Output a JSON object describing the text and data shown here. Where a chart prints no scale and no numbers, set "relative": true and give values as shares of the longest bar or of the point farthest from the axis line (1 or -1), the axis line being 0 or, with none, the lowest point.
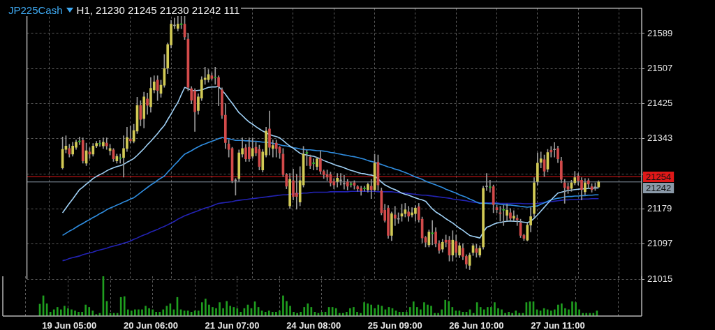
{
  "chart_data": [
    {
      "type": "candlestick",
      "title": "JP225Cash",
      "subtitle": "H1, 21230 21245 21230 21242 111",
      "categories": [
        null,
        null,
        "19 Jun 05:00",
        null,
        null,
        null,
        null,
        null,
        null,
        null,
        null,
        null,
        null,
        null,
        null,
        null,
        null,
        null,
        null,
        null,
        null,
        null,
        null,
        null,
        null,
        null,
        "20 Jun 06:00",
        null,
        null,
        null,
        null,
        null,
        null,
        null,
        null,
        null,
        null,
        null,
        null,
        null,
        null,
        null,
        null,
        null,
        null,
        null,
        null,
        null,
        null,
        null,
        "21 Jun 07:00",
        null,
        null,
        null,
        null,
        null,
        null,
        null,
        null,
        null,
        null,
        null,
        null,
        null,
        null,
        null,
        null,
        null,
        null,
        null,
        null,
        null,
        null,
        null,
        "24 Jun 08:00",
        null,
        null,
        null,
        null,
        null,
        null,
        null,
        null,
        null,
        null,
        null,
        null,
        null,
        null,
        null,
        null,
        null,
        null,
        null,
        null,
        null,
        null,
        null,
        "25 Jun 09:00",
        null,
        null,
        null,
        null,
        null,
        null,
        null,
        null,
        null,
        null,
        null,
        null,
        null,
        null,
        null,
        null,
        null,
        null,
        null,
        null,
        null,
        null,
        null,
        "26 Jun 10:00",
        null,
        null,
        null,
        null,
        null,
        null,
        null,
        null,
        null,
        null,
        null,
        null,
        null,
        null,
        null,
        null,
        null,
        null,
        null,
        null,
        null,
        null,
        null,
        "27 Jun 11:00",
        null,
        null,
        null,
        null,
        null,
        null,
        null,
        null,
        null,
        null,
        null,
        null
      ],
      "ohlc": [
        [
          21275,
          21347,
          21272,
          21318
        ],
        [
          21318,
          21350,
          21310,
          21326
        ],
        [
          21320,
          21330,
          21300,
          21307
        ],
        [
          21307,
          21335,
          21302,
          21326
        ],
        [
          21323,
          21340,
          21318,
          21335
        ],
        [
          21336,
          21347,
          21329,
          21336
        ],
        [
          21339,
          21345,
          21286,
          21291
        ],
        [
          21286,
          21333,
          21280,
          21315
        ],
        [
          21312,
          21322,
          21297,
          21307
        ],
        [
          21307,
          21332,
          21302,
          21326
        ],
        [
          21326,
          21337,
          21322,
          21332
        ],
        [
          21331,
          21339,
          21325,
          21331
        ],
        [
          21326,
          21345,
          21320,
          21335
        ],
        [
          21333,
          21345,
          21318,
          21326
        ],
        [
          21315,
          21330,
          21305,
          21320
        ],
        [
          21317,
          21320,
          21290,
          21296
        ],
        [
          21291,
          21307,
          21286,
          21302
        ],
        [
          21297,
          21307,
          21286,
          21297
        ],
        [
          21299,
          21350,
          21253,
          21320
        ],
        [
          21320,
          21370,
          21313,
          21346
        ],
        [
          21342,
          21373,
          21333,
          21338
        ],
        [
          21337,
          21377,
          21333,
          21362
        ],
        [
          21361,
          21440,
          21355,
          21421
        ],
        [
          21421,
          21432,
          21373,
          21388
        ],
        [
          21390,
          21452,
          21368,
          21441
        ],
        [
          21436,
          21450,
          21400,
          21421
        ],
        [
          21418,
          21486,
          21405,
          21461
        ],
        [
          21457,
          21490,
          21450,
          21476
        ],
        [
          21480,
          21490,
          21432,
          21456
        ],
        [
          21449,
          21480,
          21440,
          21468
        ],
        [
          21468,
          21540,
          21463,
          21507
        ],
        [
          21508,
          21567,
          21495,
          21563
        ],
        [
          21562,
          21620,
          21555,
          21611
        ],
        [
          21607,
          21625,
          21600,
          21607
        ],
        [
          21601,
          21630,
          21595,
          21611
        ],
        [
          21610,
          21630,
          21600,
          21610
        ],
        [
          21611,
          21630,
          21575,
          21581
        ],
        [
          21576,
          21590,
          21455,
          21463
        ],
        [
          21460,
          21465,
          21425,
          21433
        ],
        [
          21455,
          21460,
          21360,
          21406
        ],
        [
          21409,
          21448,
          21400,
          21441
        ],
        [
          21438,
          21488,
          21432,
          21481
        ],
        [
          21481,
          21510,
          21470,
          21485
        ],
        [
          21481,
          21505,
          21475,
          21493
        ],
        [
          21490,
          21497,
          21480,
          21484
        ],
        [
          21485,
          21510,
          21470,
          21485
        ],
        [
          21486,
          21490,
          21420,
          21465
        ],
        [
          21457,
          21462,
          21390,
          21398
        ],
        [
          21398,
          21425,
          21320,
          21334
        ],
        [
          21331,
          21340,
          21300,
          21318
        ],
        [
          21320,
          21323,
          21240,
          21245
        ],
        [
          21245,
          21250,
          21211,
          21245
        ],
        [
          21250,
          21317,
          21243,
          21310
        ],
        [
          21307,
          21345,
          21300,
          21320
        ],
        [
          21322,
          21330,
          21290,
          21296
        ],
        [
          21323,
          21345,
          21290,
          21296
        ],
        [
          21302,
          21345,
          21297,
          21320
        ],
        [
          21323,
          21335,
          21303,
          21310
        ],
        [
          21318,
          21328,
          21270,
          21278
        ],
        [
          21270,
          21318,
          21265,
          21312
        ],
        [
          21305,
          21370,
          21300,
          21361
        ],
        [
          21366,
          21408,
          21305,
          21323
        ],
        [
          21320,
          21340,
          21300,
          21327
        ],
        [
          21333,
          21340,
          21300,
          21320
        ],
        [
          21323,
          21325,
          21297,
          21310
        ],
        [
          21307,
          21320,
          21255,
          21259
        ],
        [
          21259,
          21262,
          21226,
          21232
        ],
        [
          21186,
          21262,
          21180,
          21248
        ],
        [
          21245,
          21272,
          21200,
          21208
        ],
        [
          21216,
          21260,
          21178,
          21208
        ],
        [
          21195,
          21278,
          21186,
          21245
        ],
        [
          21235,
          21325,
          21230,
          21307
        ],
        [
          21309,
          21316,
          21280,
          21309
        ],
        [
          21300,
          21305,
          21273,
          21280
        ],
        [
          21285,
          21296,
          21270,
          21285
        ],
        [
          21278,
          21300,
          21270,
          21296
        ],
        [
          21296,
          21315,
          21260,
          21267
        ],
        [
          21267,
          21270,
          21250,
          21259
        ],
        [
          21259,
          21270,
          21245,
          21253
        ],
        [
          21259,
          21265,
          21232,
          21240
        ],
        [
          21243,
          21250,
          21226,
          21235
        ],
        [
          21243,
          21262,
          21230,
          21251
        ],
        [
          21245,
          21262,
          21235,
          21245
        ],
        [
          21237,
          21258,
          21225,
          21237
        ],
        [
          21242,
          21248,
          21223,
          21232
        ],
        [
          21236,
          21242,
          21230,
          21236
        ],
        [
          21240,
          21245,
          21225,
          21234
        ],
        [
          21231,
          21234,
          21220,
          21226
        ],
        [
          21227,
          21232,
          21211,
          21221
        ],
        [
          21226,
          21232,
          21220,
          21226
        ],
        [
          21224,
          21240,
          21218,
          21236
        ],
        [
          21232,
          21248,
          21203,
          21224
        ],
        [
          21224,
          21307,
          21220,
          21286
        ],
        [
          21288,
          21305,
          21222,
          21235
        ],
        [
          21221,
          21228,
          21165,
          21170
        ],
        [
          21176,
          21190,
          21148,
          21152
        ],
        [
          21181,
          21187,
          21110,
          21117
        ],
        [
          21117,
          21172,
          21105,
          21168
        ],
        [
          21165,
          21185,
          21140,
          21157
        ],
        [
          21155,
          21170,
          21145,
          21155
        ],
        [
          21162,
          21190,
          21150,
          21168
        ],
        [
          21168,
          21192,
          21160,
          21177
        ],
        [
          21172,
          21185,
          21150,
          21162
        ],
        [
          21165,
          21182,
          21160,
          21170
        ],
        [
          21168,
          21187,
          21150,
          21181
        ],
        [
          21184,
          21192,
          21148,
          21154
        ],
        [
          21155,
          21160,
          21100,
          21111
        ],
        [
          21112,
          21115,
          21090,
          21101
        ],
        [
          21095,
          21130,
          21090,
          21125
        ],
        [
          21121,
          21152,
          21095,
          21123
        ],
        [
          21125,
          21135,
          21090,
          21098
        ],
        [
          21098,
          21105,
          21075,
          21082
        ],
        [
          21085,
          21108,
          21078,
          21101
        ],
        [
          21106,
          21118,
          21090,
          21101
        ],
        [
          21106,
          21115,
          21057,
          21071
        ],
        [
          21071,
          21128,
          21057,
          21106
        ],
        [
          21103,
          21118,
          21066,
          21077
        ],
        [
          21071,
          21100,
          21065,
          21093
        ],
        [
          21087,
          21098,
          21060,
          21068
        ],
        [
          21068,
          21072,
          21040,
          21050
        ],
        [
          21047,
          21076,
          21037,
          21071
        ],
        [
          21077,
          21098,
          21070,
          21093
        ],
        [
          21086,
          21096,
          21066,
          21077
        ],
        [
          21071,
          21093,
          21066,
          21087
        ],
        [
          21090,
          21232,
          21085,
          21227
        ],
        [
          21231,
          21262,
          21222,
          21231
        ],
        [
          21229,
          21246,
          21218,
          21229
        ],
        [
          21231,
          21235,
          21170,
          21189
        ],
        [
          21182,
          21188,
          21170,
          21177
        ],
        [
          21170,
          21185,
          21150,
          21168
        ],
        [
          21176,
          21188,
          21140,
          21176
        ],
        [
          21164,
          21190,
          21150,
          21176
        ],
        [
          21170,
          21180,
          21150,
          21157
        ],
        [
          21157,
          21175,
          21150,
          21162
        ],
        [
          21157,
          21165,
          21140,
          21154
        ],
        [
          21146,
          21155,
          21112,
          21117
        ],
        [
          21117,
          21120,
          21105,
          21110
        ],
        [
          21106,
          21145,
          21104,
          21141
        ],
        [
          21141,
          21182,
          21125,
          21161
        ],
        [
          21168,
          21252,
          21160,
          21240
        ],
        [
          21243,
          21310,
          21235,
          21286
        ],
        [
          21288,
          21312,
          21275,
          21296
        ],
        [
          21294,
          21305,
          21255,
          21267
        ],
        [
          21272,
          21318,
          21265,
          21311
        ],
        [
          21316,
          21325,
          21300,
          21312
        ],
        [
          21317,
          21334,
          21300,
          21317
        ],
        [
          21320,
          21326,
          21287,
          21296
        ],
        [
          21291,
          21300,
          21240,
          21248
        ],
        [
          21240,
          21248,
          21192,
          21229
        ],
        [
          21231,
          21240,
          21215,
          21225
        ],
        [
          21227,
          21246,
          21220,
          21240
        ],
        [
          21240,
          21267,
          21235,
          21252
        ],
        [
          21256,
          21262,
          21235,
          21245
        ],
        [
          21246,
          21252,
          21200,
          21224
        ],
        [
          21219,
          21250,
          21212,
          21240
        ],
        [
          21245,
          21250,
          21228,
          21237
        ],
        [
          21231,
          21238,
          21218,
          21224
        ],
        [
          21229,
          21240,
          21222,
          21229
        ],
        [
          21230,
          21245,
          21230,
          21242
        ]
      ],
      "colors": [
        "#d2ca55",
        "#d2ca55",
        "#d24a4a",
        "#d2ca55",
        "#d2ca55",
        "#20c020",
        "#d24a4a",
        "#d2ca55",
        "#d24a4a",
        "#d2ca55",
        "#d2ca55",
        "#20c020",
        "#d2ca55",
        "#d24a4a",
        "#d2ca55",
        "#d24a4a",
        "#d2ca55",
        "#20c020",
        "#d2ca55",
        "#d2ca55",
        "#d24a4a",
        "#d2ca55",
        "#d2ca55",
        "#d24a4a",
        "#d2ca55",
        "#d24a4a",
        "#d2ca55",
        "#d2ca55",
        "#d24a4a",
        "#d2ca55",
        "#d2ca55",
        "#d2ca55",
        "#d2ca55",
        "#a0a0a0",
        "#d2ca55",
        "#20c020",
        "#d24a4a",
        "#d24a4a",
        "#d24a4a",
        "#d24a4a",
        "#d2ca55",
        "#d2ca55",
        "#d2ca55",
        "#d2ca55",
        "#d24a4a",
        "#20c020",
        "#d24a4a",
        "#d24a4a",
        "#d24a4a",
        "#d24a4a",
        "#d24a4a",
        "#a0a0a0",
        "#d2ca55",
        "#d2ca55",
        "#d24a4a",
        "#d24a4a",
        "#d2ca55",
        "#d24a4a",
        "#d24a4a",
        "#d2ca55",
        "#d2ca55",
        "#d24a4a",
        "#d2ca55",
        "#d24a4a",
        "#d24a4a",
        "#d24a4a",
        "#d24a4a",
        "#d2ca55",
        "#d24a4a",
        "#d24a4a",
        "#d2ca55",
        "#d2ca55",
        "#20c020",
        "#d24a4a",
        "#20c020",
        "#d2ca55",
        "#d24a4a",
        "#d24a4a",
        "#d24a4a",
        "#d24a4a",
        "#d24a4a",
        "#d2ca55",
        "#a0a0a0",
        "#a0a0a0",
        "#d24a4a",
        "#20c020",
        "#d24a4a",
        "#d24a4a",
        "#d24a4a",
        "#20c020",
        "#d2ca55",
        "#d24a4a",
        "#d2ca55",
        "#d24a4a",
        "#d24a4a",
        "#d24a4a",
        "#d24a4a",
        "#d2ca55",
        "#d24a4a",
        "#a0a0a0",
        "#d2ca55",
        "#d2ca55",
        "#d24a4a",
        "#d2ca55",
        "#d2ca55",
        "#d24a4a",
        "#d24a4a",
        "#d24a4a",
        "#d2ca55",
        "#20c020",
        "#d24a4a",
        "#d24a4a",
        "#d2ca55",
        "#d24a4a",
        "#d24a4a",
        "#d2ca55",
        "#d24a4a",
        "#d2ca55",
        "#d24a4a",
        "#d24a4a",
        "#d2ca55",
        "#d2ca55",
        "#d24a4a",
        "#d2ca55",
        "#d2ca55",
        "#a0a0a0",
        "#20c020",
        "#d24a4a",
        "#d24a4a",
        "#d24a4a",
        "#20c020",
        "#d2ca55",
        "#d24a4a",
        "#d2ca55",
        "#d24a4a",
        "#d24a4a",
        "#d24a4a",
        "#d2ca55",
        "#d2ca55",
        "#d2ca55",
        "#d2ca55",
        "#d2ca55",
        "#d24a4a",
        "#d2ca55",
        "#d24a4a",
        "#a0a0a0",
        "#d24a4a",
        "#d24a4a",
        "#d24a4a",
        "#d24a4a",
        "#d2ca55",
        "#d2ca55",
        "#d24a4a",
        "#d24a4a",
        "#d2ca55",
        "#d24a4a",
        "#d24a4a",
        "#a0a0a0",
        "#d2ca55"
      ],
      "series": [
        {
          "type": "line",
          "color": "#9fd0f5",
          "values": [
            21170,
            21181,
            21192,
            21202,
            21213,
            21224,
            21230,
            21237,
            21243,
            21250,
            21255,
            21259,
            21263,
            21268,
            21272,
            21275,
            21278,
            21280,
            21283,
            21288,
            21292,
            21297,
            21304,
            21312,
            21320,
            21329,
            21337,
            21346,
            21355,
            21365,
            21374,
            21388,
            21401,
            21415,
            21428,
            21446,
            21463,
            21460,
            21456,
            21455,
            21456,
            21457,
            21460,
            21463,
            21464,
            21464,
            21465,
            21456,
            21447,
            21436,
            21426,
            21415,
            21404,
            21397,
            21389,
            21382,
            21377,
            21371,
            21366,
            21361,
            21357,
            21353,
            21350,
            21348,
            21345,
            21339,
            21332,
            21326,
            21321,
            21315,
            21309,
            21306,
            21305,
            21303,
            21302,
            21299,
            21296,
            21292,
            21289,
            21286,
            21283,
            21280,
            21278,
            21275,
            21272,
            21269,
            21267,
            21264,
            21262,
            21261,
            21259,
            21258,
            21256,
            21249,
            21242,
            21235,
            21231,
            21227,
            21224,
            21220,
            21216,
            21213,
            21211,
            21208,
            21205,
            21202,
            21200,
            21197,
            21188,
            21179,
            21172,
            21167,
            21162,
            21156,
            21151,
            21146,
            21140,
            21134,
            21129,
            21123,
            21117,
            21115,
            21113,
            21111,
            21124,
            21136,
            21139,
            21143,
            21146,
            21147,
            21149,
            21150,
            21151,
            21150,
            21150,
            21149,
            21148,
            21147,
            21150,
            21157,
            21165,
            21174,
            21183,
            21192,
            21200,
            21208,
            21216,
            21218,
            21220,
            21222,
            21223,
            21224,
            21225,
            21226,
            21226,
            21227,
            21227,
            21228,
            21228
          ]
        },
        {
          "type": "line",
          "color": "#2f8de0",
          "values": [
            21117,
            21122,
            21127,
            21131,
            21136,
            21141,
            21145,
            21150,
            21154,
            21159,
            21163,
            21168,
            21172,
            21177,
            21181,
            21184,
            21188,
            21191,
            21195,
            21198,
            21202,
            21205,
            21211,
            21217,
            21223,
            21229,
            21235,
            21240,
            21246,
            21251,
            21256,
            21265,
            21273,
            21282,
            21290,
            21299,
            21307,
            21311,
            21315,
            21320,
            21324,
            21328,
            21331,
            21334,
            21337,
            21340,
            21343,
            21346,
            21344,
            21343,
            21341,
            21339,
            21339,
            21339,
            21338,
            21338,
            21337,
            21337,
            21336,
            21335,
            21335,
            21334,
            21332,
            21331,
            21329,
            21327,
            21326,
            21324,
            21322,
            21321,
            21319,
            21318,
            21317,
            21317,
            21316,
            21315,
            21315,
            21314,
            21313,
            21311,
            21310,
            21308,
            21307,
            21305,
            21304,
            21302,
            21301,
            21299,
            21297,
            21295,
            21292,
            21290,
            21288,
            21285,
            21283,
            21280,
            21277,
            21275,
            21272,
            21270,
            21267,
            21264,
            21261,
            21257,
            21254,
            21251,
            21248,
            21244,
            21241,
            21238,
            21235,
            21232,
            21229,
            21225,
            21222,
            21219,
            21216,
            21212,
            21209,
            21206,
            21202,
            21199,
            21195,
            21192,
            21192,
            21192,
            21191,
            21191,
            21191,
            21190,
            21189,
            21188,
            21188,
            21187,
            21186,
            21185,
            21184,
            21183,
            21184,
            21185,
            21186,
            21190,
            21193,
            21197,
            21200,
            21202,
            21204,
            21205,
            21207,
            21208,
            21208,
            21209,
            21209,
            21210,
            21210,
            21211,
            21211,
            21212,
            21212
          ]
        },
        {
          "type": "line",
          "color": "#2323b4",
          "values": [
            21058,
            21060,
            21063,
            21065,
            21067,
            21069,
            21072,
            21074,
            21076,
            21078,
            21081,
            21083,
            21085,
            21087,
            21090,
            21092,
            21094,
            21096,
            21099,
            21101,
            21104,
            21108,
            21111,
            21115,
            21118,
            21121,
            21125,
            21128,
            21131,
            21135,
            21138,
            21142,
            21146,
            21150,
            21155,
            21159,
            21163,
            21166,
            21169,
            21172,
            21175,
            21178,
            21181,
            21183,
            21186,
            21189,
            21192,
            21193,
            21194,
            21195,
            21196,
            21198,
            21199,
            21200,
            21201,
            21202,
            21203,
            21204,
            21205,
            21206,
            21207,
            21208,
            21209,
            21210,
            21211,
            21212,
            21212,
            21213,
            21214,
            null,
            21215,
            21216,
            21216,
            21217,
            21218,
            21218,
            21218,
            21218,
            21218,
            21219,
            21219,
            21219,
            21219,
            21219,
            21219,
            21220,
            21220,
            21220,
            21220,
            21220,
            21220,
            21220,
            21220,
            21219,
            21219,
            21219,
            21219,
            21219,
            21218,
            21217,
            21216,
            21216,
            21215,
            21214,
            21213,
            21212,
            21211,
            21211,
            21210,
            21209,
            21208,
            21207,
            21206,
            21205,
            21204,
            21202,
            21201,
            21200,
            21199,
            21198,
            21196,
            21195,
            21194,
            21193,
            21193,
            21193,
            21193,
            21193,
            21193,
            21192,
            21192,
            21192,
            21192,
            21192,
            21192,
            21192,
            21191,
            21191,
            21191,
            21191,
            21192,
            21193,
            21194,
            21195,
            21196,
            21197,
            21198,
            21199,
            21200,
            21200,
            21201,
            21201,
            21201,
            21202,
            21202,
            21202,
            21203,
            21203,
            21203
          ]
        }
      ],
      "ylim": [
        21015,
        21648
      ],
      "yticks": [
        21015,
        21097,
        21179,
        {
          "value": 21261,
          "label": null
        },
        21343,
        21425,
        21507,
        21589
      ],
      "ref_lines": [
        {
          "axis": "y",
          "value": 21254,
          "label": "21254",
          "color": "#e01818"
        },
        {
          "axis": "y",
          "value": 21242,
          "label": "21242",
          "color": "#8a99a8"
        }
      ],
      "grid": true
    },
    {
      "type": "bar",
      "relative": true,
      "color": "#1f9e1f",
      "values": [
        0.3,
        0.51,
        0.31,
        0.1,
        0.16,
        0.22,
        0.16,
        0.25,
        0.19,
        0.16,
        0.13,
        0.1,
        0.1,
        0.28,
        0.22,
        0.13,
        0.04,
        0.07,
        1,
        0.37,
        0.07,
        0.07,
        0.07,
        0.47,
        0.49,
        0.16,
        0.13,
        0.16,
        0.16,
        0.16,
        0.25,
        0.19,
        0.16,
        0.1,
        0.1,
        0.16,
        0.25,
        0.31,
        0.16,
        0.47,
        0.16,
        0.13,
        0.13,
        0.1,
        0.13,
        0.13,
        0.34,
        0.43,
        0.28,
        0.22,
        0.19,
        0.34,
        0.19,
        0.37,
        0.25,
        0.22,
        0.19,
        0.1,
        0.19,
        0.28,
        0.19,
        0.36,
        0.22,
        0.13,
        0.1,
        0.13,
        0.1,
        0.1,
        0.13,
        0.51,
        0.37,
        0.25,
        0.1,
        0.07,
        0.1,
        0.22,
        0.31,
        0.22,
        0.1,
        0.07,
        0.1,
        0.1,
        0.22,
        0.22,
        0.19,
        0.07,
        0.07,
        0.1,
        0.19,
        0.22,
        0.1,
        0.07,
        0.34,
        0.31,
        0.28,
        0.19,
        0.28,
        0.25,
        0.16,
        0.22,
        0.19,
        0.13,
        0.1,
        0.1,
        0.1,
        0.22,
        0.36,
        0.22,
        0.16,
        0.34,
        0.28,
        0.25,
        0.07,
        0.07,
        0.16,
        0.4,
        0.37,
        0.22,
        0.13,
        0.13,
        0.1,
        0.1,
        0.16,
        0.07,
        0.34,
        0.22,
        0.16,
        0.22,
        0.22,
        0.34,
        0.19,
        0.16,
        0.07,
        0.1,
        0.07,
        0.13,
        0.07,
        0.07,
        0.34,
        0.36,
        0.36,
        0.16,
        0.13,
        0.19,
        0.16,
        0.13,
        0.16,
        0.28,
        0.31,
        0.19,
        0.16,
        0.36,
        0.34,
        0.16,
        0.07,
        0.07,
        0.07,
        0.07,
        0.13
      ],
      "grid": "x",
      "tick_labels": false
    }
  ]
}
